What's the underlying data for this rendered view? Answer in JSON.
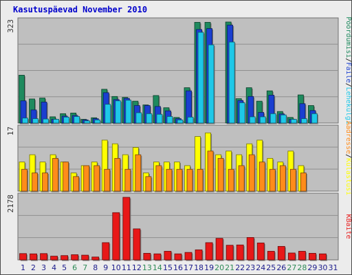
{
  "title": "Kasutuspäevad November 2010",
  "colors": {
    "hits": "#1e8a5e",
    "files": "#1a3fd0",
    "pages": "#1ec8e8",
    "visits": "#ffff00",
    "sites": "#ff8c1a",
    "kbytes": "#e81818",
    "weekday_label": "#1b1b8b",
    "weekend_label": "#2e8b57",
    "panel_bg": "#bfbfbf"
  },
  "chart_data": [
    {
      "type": "bar",
      "panel": "top",
      "ymax_label": "323",
      "ylim": [
        0,
        323
      ],
      "categories": [
        "1",
        "2",
        "3",
        "4",
        "5",
        "6",
        "7",
        "8",
        "9",
        "10",
        "11",
        "12",
        "13",
        "14",
        "15",
        "16",
        "17",
        "18",
        "19",
        "20",
        "21",
        "22",
        "23",
        "24",
        "25",
        "26",
        "27",
        "28",
        "29",
        "30",
        "31"
      ],
      "weekend": [
        6,
        7,
        13,
        14,
        20,
        21,
        27,
        28
      ],
      "series": [
        {
          "name": "Pöördumisi",
          "values": [
            153,
            77,
            80,
            20,
            30,
            32,
            12,
            17,
            108,
            85,
            82,
            70,
            58,
            88,
            49,
            18,
            113,
            322,
            322,
            0,
            323,
            78,
            113,
            70,
            103,
            37,
            18,
            90,
            56,
            0,
            0
          ]
        },
        {
          "name": "Faile",
          "values": [
            71,
            42,
            67,
            12,
            22,
            24,
            10,
            14,
            97,
            75,
            79,
            56,
            56,
            53,
            39,
            14,
            103,
            299,
            302,
            0,
            313,
            72,
            85,
            34,
            89,
            29,
            12,
            62,
            40,
            0,
            0
          ]
        },
        {
          "name": "Lehekülgi",
          "values": [
            16,
            14,
            13,
            12,
            19,
            21,
            7,
            10,
            60,
            71,
            73,
            33,
            30,
            28,
            21,
            10,
            19,
            290,
            250,
            0,
            259,
            65,
            20,
            20,
            30,
            26,
            12,
            14,
            30,
            0,
            0
          ]
        }
      ],
      "legend": [
        "Pöördumisi",
        "Faile",
        "Lehekülgi"
      ]
    },
    {
      "type": "bar",
      "panel": "middle",
      "ymax_label": "17",
      "ylim": [
        0,
        17
      ],
      "categories": [
        "1",
        "2",
        "3",
        "4",
        "5",
        "6",
        "7",
        "8",
        "9",
        "10",
        "11",
        "12",
        "13",
        "14",
        "15",
        "16",
        "17",
        "18",
        "19",
        "20",
        "21",
        "22",
        "23",
        "24",
        "25",
        "26",
        "27",
        "28",
        "29",
        "30",
        "31"
      ],
      "series": [
        {
          "name": "Külastusi",
          "values": [
            8,
            10,
            8,
            10,
            8,
            5,
            7,
            8,
            14,
            13,
            10,
            12,
            5,
            8,
            8,
            8,
            7,
            15,
            16,
            10,
            11,
            10,
            13,
            14,
            9,
            8,
            11,
            7,
            0,
            0,
            0
          ]
        },
        {
          "name": "Aadresse",
          "values": [
            6,
            5,
            5,
            9,
            8,
            4,
            7,
            7,
            6,
            9,
            6,
            10,
            4,
            7,
            6,
            6,
            6,
            6,
            11,
            9,
            6,
            7,
            10,
            8,
            6,
            7,
            6,
            5,
            0,
            0,
            0
          ]
        }
      ],
      "legend": [
        "Aadresse",
        "Külastusi"
      ]
    },
    {
      "type": "bar",
      "panel": "bottom",
      "ymax_label": "2178",
      "ylim": [
        0,
        2178
      ],
      "categories": [
        "1",
        "2",
        "3",
        "4",
        "5",
        "6",
        "7",
        "8",
        "9",
        "10",
        "11",
        "12",
        "13",
        "14",
        "15",
        "16",
        "17",
        "18",
        "19",
        "20",
        "21",
        "22",
        "23",
        "24",
        "25",
        "26",
        "27",
        "28",
        "29",
        "30",
        "31"
      ],
      "series": [
        {
          "name": "KBaite",
          "values": [
            220,
            210,
            220,
            130,
            150,
            180,
            165,
            100,
            600,
            1645,
            2178,
            1080,
            230,
            210,
            300,
            210,
            260,
            350,
            600,
            750,
            510,
            520,
            780,
            590,
            300,
            470,
            240,
            300,
            230,
            210,
            0
          ]
        }
      ],
      "legend": [
        "KBaite"
      ]
    }
  ],
  "right_legend": {
    "top": [
      {
        "text": "Pöördumisi",
        "color": "#1e8a5e"
      },
      {
        "text": "Faile",
        "color": "#1a3fd0"
      },
      {
        "text": "Lehekülgi",
        "color": "#1ec8e8"
      }
    ],
    "middle": [
      {
        "text": "Aadresse",
        "color": "#ff8c1a"
      },
      {
        "text": "Külastusi",
        "color": "#ffff00"
      }
    ],
    "bottom": [
      {
        "text": "KBaite",
        "color": "#e81818"
      }
    ]
  },
  "separator": "/"
}
